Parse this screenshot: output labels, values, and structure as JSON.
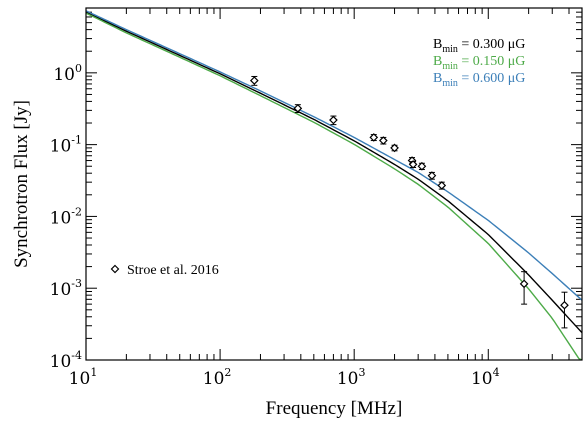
{
  "chart_data": {
    "type": "line",
    "xlabel": "Frequency [MHz]",
    "ylabel": "Synchrotron Flux [Jy]",
    "xscale": "log",
    "yscale": "log",
    "xlim": [
      10,
      50000
    ],
    "ylim": [
      0.0001,
      8
    ],
    "x_ticks": [
      {
        "value": 10,
        "base": "10",
        "exp": "1"
      },
      {
        "value": 100,
        "base": "10",
        "exp": "2"
      },
      {
        "value": 1000,
        "base": "10",
        "exp": "3"
      },
      {
        "value": 10000,
        "base": "10",
        "exp": "4"
      }
    ],
    "y_ticks": [
      {
        "value": 0.0001,
        "base": "10",
        "exp": "-4"
      },
      {
        "value": 0.001,
        "base": "10",
        "exp": "-3"
      },
      {
        "value": 0.01,
        "base": "10",
        "exp": "-2"
      },
      {
        "value": 0.1,
        "base": "10",
        "exp": "-1"
      },
      {
        "value": 1,
        "base": "10",
        "exp": "0"
      }
    ],
    "legend_placement": "top-right",
    "series": [
      {
        "name_prefix": "B",
        "name_sub": "min",
        "name_suffix": " = 0.300 μG",
        "color": "#000000",
        "x": [
          10,
          20,
          50,
          100,
          200,
          500,
          1000,
          2000,
          3000,
          5000,
          10000,
          20000,
          30000,
          50000
        ],
        "y": [
          7.0,
          3.8,
          1.75,
          0.97,
          0.52,
          0.225,
          0.113,
          0.053,
          0.033,
          0.0165,
          0.0056,
          0.00153,
          0.00068,
          0.00024
        ]
      },
      {
        "name_prefix": "B",
        "name_sub": "min",
        "name_suffix": " = 0.150 μG",
        "color": "#4daa48",
        "x": [
          10,
          20,
          50,
          100,
          200,
          500,
          1000,
          2000,
          3000,
          5000,
          10000,
          20000,
          30000,
          50000
        ],
        "y": [
          6.8,
          3.6,
          1.65,
          0.91,
          0.48,
          0.205,
          0.101,
          0.046,
          0.028,
          0.0135,
          0.0042,
          0.00098,
          0.00038,
          9e-05
        ]
      },
      {
        "name_prefix": "B",
        "name_sub": "min",
        "name_suffix": " = 0.600 μG",
        "color": "#3c7fb8",
        "x": [
          10,
          20,
          50,
          100,
          200,
          500,
          1000,
          2000,
          3000,
          5000,
          10000,
          20000,
          30000,
          50000
        ],
        "y": [
          7.3,
          4.0,
          1.85,
          1.03,
          0.56,
          0.245,
          0.126,
          0.062,
          0.041,
          0.022,
          0.0088,
          0.0031,
          0.0016,
          0.00068
        ]
      }
    ],
    "observations": {
      "name": "Stroe et al. 2016",
      "points": [
        {
          "x": 180,
          "y": 0.78,
          "err": 0.11
        },
        {
          "x": 380,
          "y": 0.32,
          "err": 0.04
        },
        {
          "x": 700,
          "y": 0.22,
          "err": 0.03
        },
        {
          "x": 1400,
          "y": 0.126,
          "err": 0.012
        },
        {
          "x": 1650,
          "y": 0.114,
          "err": 0.012
        },
        {
          "x": 2000,
          "y": 0.09,
          "err": 0.008
        },
        {
          "x": 2700,
          "y": 0.06,
          "err": 0.006
        },
        {
          "x": 2750,
          "y": 0.053,
          "err": 0.005
        },
        {
          "x": 3200,
          "y": 0.05,
          "err": 0.005
        },
        {
          "x": 3800,
          "y": 0.037,
          "err": 0.004
        },
        {
          "x": 4500,
          "y": 0.027,
          "err": 0.003
        },
        {
          "x": 18500,
          "y": 0.00115,
          "err": 0.00055
        },
        {
          "x": 37000,
          "y": 0.00058,
          "err": 0.0003
        }
      ]
    }
  }
}
